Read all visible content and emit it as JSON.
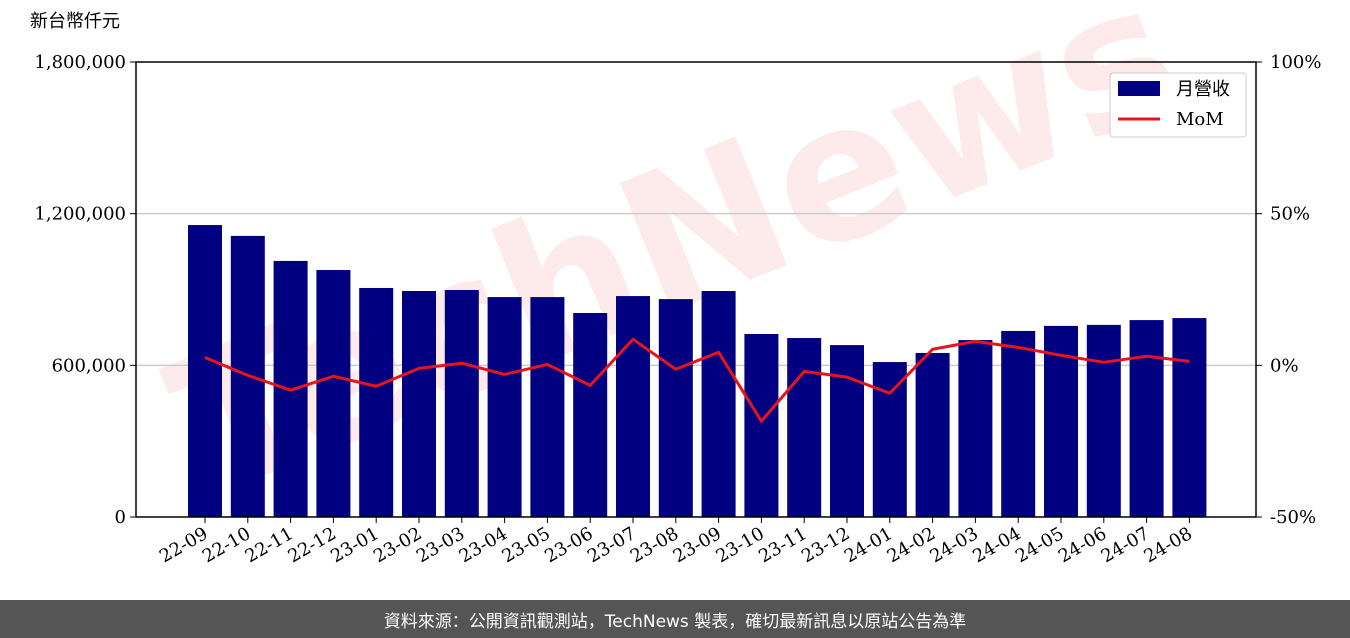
{
  "chart_data": {
    "type": "bar_line",
    "y_label": "新台幣仟元",
    "watermark": "TechNews",
    "categories": [
      "22-09",
      "22-10",
      "22-11",
      "22-12",
      "23-01",
      "23-02",
      "23-03",
      "23-04",
      "23-05",
      "23-06",
      "23-07",
      "23-08",
      "23-09",
      "23-10",
      "23-11",
      "23-12",
      "24-01",
      "24-02",
      "24-03",
      "24-04",
      "24-05",
      "24-06",
      "24-07",
      "24-08"
    ],
    "series": [
      {
        "name": "月營收",
        "type": "bar",
        "color": "#000080",
        "values": [
          1155000,
          1112000,
          1013000,
          977000,
          906000,
          894000,
          898000,
          870000,
          870000,
          807000,
          874000,
          862000,
          894000,
          724000,
          708000,
          680000,
          613000,
          649000,
          700000,
          736000,
          756000,
          760000,
          779000,
          787000
        ]
      },
      {
        "name": "MoM",
        "type": "line",
        "axis": "y2",
        "color": "#e8141c",
        "values": [
          2.6,
          -3.3,
          -8.2,
          -3.6,
          -6.9,
          -1.0,
          0.7,
          -3.0,
          0.3,
          -6.6,
          8.6,
          -1.3,
          4.3,
          -18.4,
          -2.0,
          -3.9,
          -9.2,
          5.3,
          7.9,
          5.9,
          3.3,
          1.0,
          3.0,
          1.3
        ]
      }
    ],
    "ylim": [
      0,
      1800000
    ],
    "yticks": [
      {
        "value": 0,
        "label": "0"
      },
      {
        "value": 600000,
        "label": "600,000"
      },
      {
        "value": 1200000,
        "label": "1,200,000"
      },
      {
        "value": 1800000,
        "label": "1,800,000"
      }
    ],
    "y2lim": [
      -50,
      100
    ],
    "y2ticks": [
      {
        "value": -50,
        "label": "-50%"
      },
      {
        "value": 0,
        "label": "0%"
      },
      {
        "value": 50,
        "label": "50%"
      },
      {
        "value": 100,
        "label": "100%"
      }
    ],
    "grid": true,
    "legend": "upper right"
  },
  "footer": "資料來源：公開資訊觀測站，TechNews 製表，確切最新訊息以原站公告為準"
}
